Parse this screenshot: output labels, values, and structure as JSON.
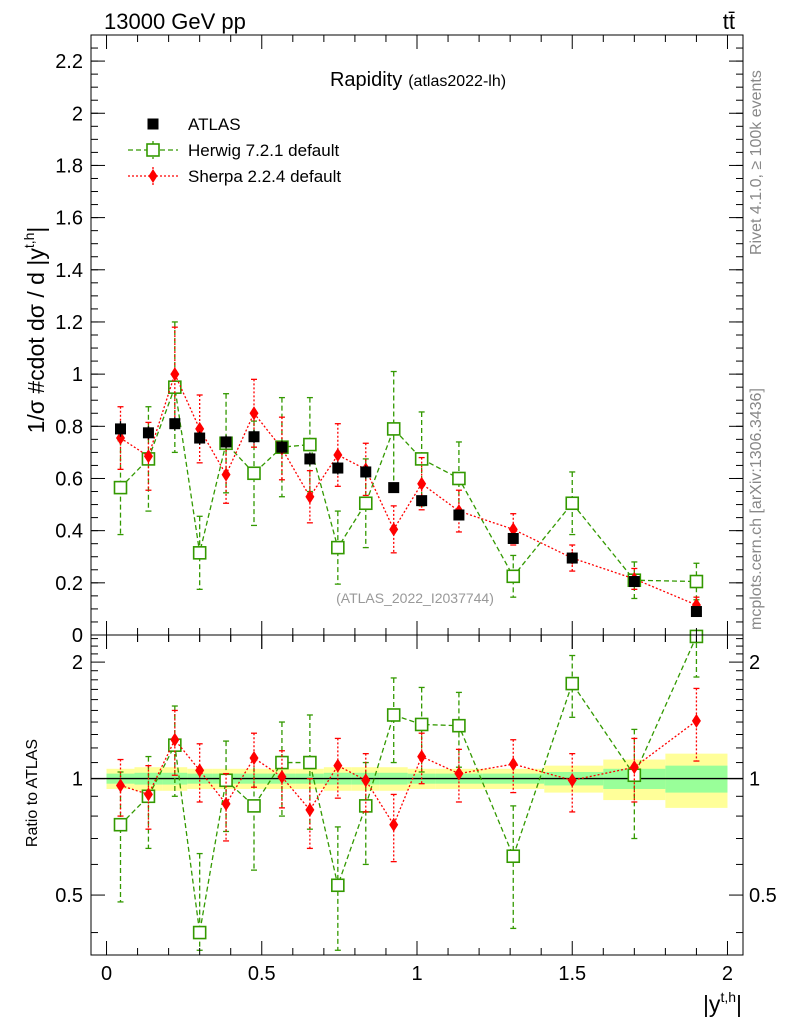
{
  "header": {
    "energy": "13000 GeV pp",
    "process": "tt̄",
    "side_top": "Rivet 4.1.0, ≥ 100k events",
    "side_bottom": "mcplots.cern.ch [arXiv:1306.3436]"
  },
  "colors": {
    "atlas": "#000000",
    "herwig": "#339900",
    "sherpa": "#ff0000",
    "band_outer": "#ffff99",
    "band_inner": "#99ff99"
  },
  "chart_data": {
    "type": "scatter",
    "title": "Rapidity",
    "subtitle": "(atlas2022-lh)",
    "watermark": "(ATLAS_2022_I2037744)",
    "ylabel": "1/σ #cdot dσ / d |y",
    "ylabel_sup": "t,h",
    "ylabel_end": "|",
    "xlabel": "|y",
    "xlabel_sup": "t,h",
    "xlabel_end": "|",
    "ratio_ylabel": "Ratio to ATLAS",
    "xlim": [
      -0.05,
      2.05
    ],
    "ylim": [
      0,
      2.3
    ],
    "ratio_ylim": [
      0.35,
      2.35
    ],
    "legend_position": "top-left",
    "x": [
      0.045,
      0.135,
      0.22,
      0.3,
      0.385,
      0.475,
      0.565,
      0.655,
      0.745,
      0.835,
      0.925,
      1.015,
      1.135,
      1.31,
      1.5,
      1.7,
      1.9
    ],
    "x_edges": [
      0,
      0.09,
      0.18,
      0.26,
      0.34,
      0.43,
      0.52,
      0.61,
      0.7,
      0.79,
      0.88,
      0.97,
      1.06,
      1.21,
      1.41,
      1.6,
      1.8,
      2.0
    ],
    "x_ticks": [
      {
        "v": 0,
        "label": "0"
      },
      {
        "v": 0.5,
        "label": "0.5"
      },
      {
        "v": 1,
        "label": "1"
      },
      {
        "v": 1.5,
        "label": "1.5"
      },
      {
        "v": 2,
        "label": "2"
      }
    ],
    "y_ticks": [
      {
        "v": 0,
        "label": "0"
      },
      {
        "v": 0.2,
        "label": "0.2"
      },
      {
        "v": 0.4,
        "label": "0.4"
      },
      {
        "v": 0.6,
        "label": "0.6"
      },
      {
        "v": 0.8,
        "label": "0.8"
      },
      {
        "v": 1,
        "label": "1"
      },
      {
        "v": 1.2,
        "label": "1.2"
      },
      {
        "v": 1.4,
        "label": "1.4"
      },
      {
        "v": 1.6,
        "label": "1.6"
      },
      {
        "v": 1.8,
        "label": "1.8"
      },
      {
        "v": 2,
        "label": "2"
      },
      {
        "v": 2.2,
        "label": "2.2"
      }
    ],
    "ratio_ticks": [
      {
        "v": 0.5,
        "label": "0.5"
      },
      {
        "v": 1,
        "label": "1"
      },
      {
        "v": 2,
        "label": "2"
      }
    ],
    "series": [
      {
        "name": "ATLAS",
        "marker": "filled-square",
        "values": [
          0.79,
          0.775,
          0.81,
          0.755,
          0.74,
          0.76,
          0.72,
          0.675,
          0.64,
          0.625,
          0.565,
          0.515,
          0.46,
          0.37,
          0.295,
          0.205,
          0.09
        ],
        "errors": [
          0.03,
          0.025,
          0.025,
          0.025,
          0.025,
          0.025,
          0.025,
          0.025,
          0.025,
          0.025,
          0.02,
          0.02,
          0.02,
          0.018,
          0.018,
          0.016,
          0.01
        ]
      },
      {
        "name": "Herwig 7.2.1 default",
        "marker": "open-square",
        "line": "dashed",
        "values": [
          0.565,
          0.675,
          0.95,
          0.315,
          0.735,
          0.62,
          0.72,
          0.73,
          0.335,
          0.505,
          0.79,
          0.675,
          0.6,
          0.225,
          0.505,
          0.21,
          0.205
        ],
        "errors": [
          0.18,
          0.2,
          0.25,
          0.14,
          0.19,
          0.2,
          0.19,
          0.18,
          0.14,
          0.17,
          0.22,
          0.18,
          0.14,
          0.08,
          0.12,
          0.07,
          0.07
        ],
        "ratio": [
          0.76,
          0.9,
          1.22,
          0.4,
          0.99,
          0.85,
          1.1,
          1.1,
          0.53,
          0.85,
          1.46,
          1.38,
          1.37,
          0.63,
          1.76,
          1.02,
          2.33
        ],
        "ratio_errors": [
          0.28,
          0.24,
          0.32,
          0.24,
          0.26,
          0.27,
          0.3,
          0.36,
          0.22,
          0.25,
          0.36,
          0.34,
          0.3,
          0.22,
          0.32,
          0.32,
          0.5
        ]
      },
      {
        "name": "Sherpa 2.2.4 default",
        "marker": "filled-diamond",
        "line": "dotted",
        "values": [
          0.755,
          0.685,
          1.0,
          0.79,
          0.615,
          0.85,
          0.715,
          0.53,
          0.69,
          0.635,
          0.405,
          0.58,
          0.475,
          0.405,
          0.295,
          0.215,
          0.115
        ],
        "errors": [
          0.12,
          0.13,
          0.18,
          0.13,
          0.11,
          0.13,
          0.12,
          0.1,
          0.12,
          0.1,
          0.09,
          0.1,
          0.08,
          0.06,
          0.05,
          0.04,
          0.03
        ],
        "ratio": [
          0.96,
          0.91,
          1.26,
          1.05,
          0.86,
          1.13,
          1.01,
          0.83,
          1.08,
          0.99,
          0.76,
          1.14,
          1.03,
          1.09,
          0.99,
          1.07,
          1.41
        ],
        "ratio_errors": [
          0.16,
          0.17,
          0.24,
          0.18,
          0.17,
          0.18,
          0.17,
          0.17,
          0.19,
          0.17,
          0.15,
          0.17,
          0.16,
          0.17,
          0.17,
          0.2,
          0.3
        ]
      }
    ],
    "ratio_band": {
      "inner": [
        0.03,
        0.035,
        0.035,
        0.03,
        0.03,
        0.03,
        0.03,
        0.03,
        0.035,
        0.035,
        0.035,
        0.03,
        0.03,
        0.03,
        0.04,
        0.06,
        0.08
      ],
      "outer": [
        0.06,
        0.07,
        0.07,
        0.06,
        0.06,
        0.06,
        0.06,
        0.06,
        0.07,
        0.07,
        0.07,
        0.06,
        0.06,
        0.06,
        0.08,
        0.12,
        0.16
      ]
    }
  }
}
